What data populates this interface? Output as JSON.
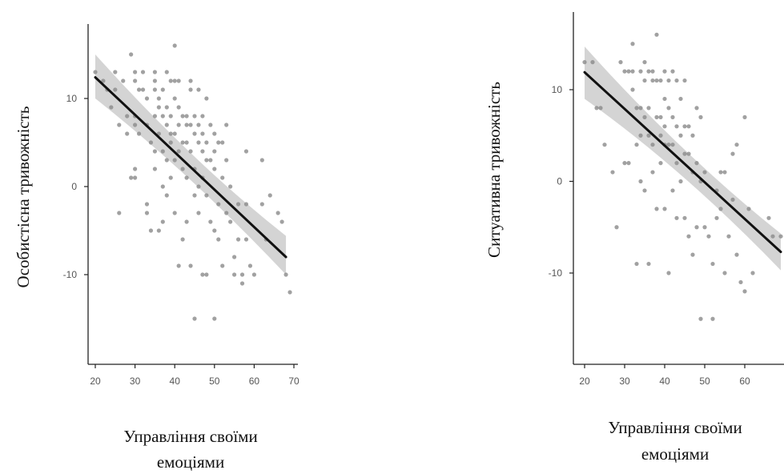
{
  "chart_data": [
    {
      "type": "scatter",
      "ylabel": "Особистісна тривожність",
      "xlabel_lines": [
        "Управління своїми",
        "емоціями"
      ],
      "x_ticks": [
        20,
        30,
        40,
        50,
        60,
        70
      ],
      "x_tick_labels": [
        "20",
        "30",
        "40",
        "50",
        "60",
        "70"
      ],
      "y_ticks": [
        -10,
        0,
        10
      ],
      "y_tick_labels": [
        "-10",
        "0",
        "10"
      ],
      "xlim": [
        20,
        70
      ],
      "ylim": [
        -17,
        18
      ],
      "regression": {
        "x": [
          20,
          68
        ],
        "y": [
          12.4,
          -8.0
        ],
        "ci_start": [
          10,
          15
        ],
        "ci_end": [
          -10.0,
          -5.6
        ]
      },
      "point_color": "#8a8a8a",
      "line_color": "#111111",
      "band_color": "#cccccc",
      "points": [
        [
          20,
          13
        ],
        [
          22,
          12
        ],
        [
          23,
          11
        ],
        [
          24,
          9
        ],
        [
          25,
          13
        ],
        [
          25,
          11
        ],
        [
          26,
          7
        ],
        [
          27,
          12
        ],
        [
          28,
          8
        ],
        [
          28,
          6
        ],
        [
          26,
          -3
        ],
        [
          29,
          15
        ],
        [
          30,
          13
        ],
        [
          30,
          12
        ],
        [
          30,
          8
        ],
        [
          30,
          7
        ],
        [
          31,
          11
        ],
        [
          31,
          6
        ],
        [
          30,
          1
        ],
        [
          29,
          1
        ],
        [
          30,
          2
        ],
        [
          32,
          13
        ],
        [
          32,
          11
        ],
        [
          33,
          10
        ],
        [
          33,
          7
        ],
        [
          33,
          -2
        ],
        [
          33,
          -3
        ],
        [
          34,
          5
        ],
        [
          34,
          -5
        ],
        [
          35,
          13
        ],
        [
          35,
          12
        ],
        [
          35,
          11
        ],
        [
          35,
          8
        ],
        [
          35,
          4
        ],
        [
          35,
          2
        ],
        [
          36,
          10
        ],
        [
          36,
          9
        ],
        [
          36,
          6
        ],
        [
          36,
          -5
        ],
        [
          37,
          11
        ],
        [
          37,
          8
        ],
        [
          37,
          4
        ],
        [
          37,
          0
        ],
        [
          37,
          -4
        ],
        [
          38,
          13
        ],
        [
          38,
          9
        ],
        [
          38,
          7
        ],
        [
          38,
          3
        ],
        [
          38,
          -1
        ],
        [
          39,
          12
        ],
        [
          39,
          8
        ],
        [
          39,
          6
        ],
        [
          39,
          5
        ],
        [
          39,
          1
        ],
        [
          40,
          16
        ],
        [
          40,
          12
        ],
        [
          40,
          10
        ],
        [
          40,
          6
        ],
        [
          40,
          3
        ],
        [
          40,
          -3
        ],
        [
          41,
          12
        ],
        [
          41,
          9
        ],
        [
          41,
          7
        ],
        [
          41,
          4
        ],
        [
          41,
          -9
        ],
        [
          42,
          8
        ],
        [
          42,
          5
        ],
        [
          42,
          2
        ],
        [
          42,
          -6
        ],
        [
          43,
          8
        ],
        [
          43,
          7
        ],
        [
          43,
          5
        ],
        [
          43,
          1
        ],
        [
          43,
          -4
        ],
        [
          44,
          12
        ],
        [
          44,
          11
        ],
        [
          44,
          7
        ],
        [
          44,
          4
        ],
        [
          44,
          -9
        ],
        [
          45,
          8
        ],
        [
          45,
          6
        ],
        [
          45,
          2
        ],
        [
          45,
          -1
        ],
        [
          45,
          -15
        ],
        [
          46,
          11
        ],
        [
          46,
          7
        ],
        [
          46,
          5
        ],
        [
          46,
          0
        ],
        [
          46,
          -3
        ],
        [
          47,
          8
        ],
        [
          47,
          6
        ],
        [
          47,
          4
        ],
        [
          47,
          1
        ],
        [
          47,
          -10
        ],
        [
          48,
          10
        ],
        [
          48,
          5
        ],
        [
          48,
          3
        ],
        [
          48,
          -1
        ],
        [
          48,
          -10
        ],
        [
          49,
          7
        ],
        [
          49,
          3
        ],
        [
          49,
          -4
        ],
        [
          50,
          6
        ],
        [
          50,
          4
        ],
        [
          50,
          2
        ],
        [
          50,
          -5
        ],
        [
          50,
          -15
        ],
        [
          51,
          5
        ],
        [
          51,
          -2
        ],
        [
          51,
          -6
        ],
        [
          52,
          5
        ],
        [
          52,
          1
        ],
        [
          52,
          -9
        ],
        [
          53,
          7
        ],
        [
          53,
          3
        ],
        [
          53,
          -3
        ],
        [
          54,
          0
        ],
        [
          54,
          -4
        ],
        [
          55,
          -8
        ],
        [
          55,
          -10
        ],
        [
          56,
          -2
        ],
        [
          56,
          -6
        ],
        [
          57,
          -10
        ],
        [
          57,
          -11
        ],
        [
          58,
          4
        ],
        [
          58,
          -2
        ],
        [
          58,
          -6
        ],
        [
          59,
          -9
        ],
        [
          60,
          -10
        ],
        [
          62,
          3
        ],
        [
          62,
          -2
        ],
        [
          63,
          -6
        ],
        [
          64,
          -1
        ],
        [
          66,
          -3
        ],
        [
          67,
          -4
        ],
        [
          68,
          -10
        ],
        [
          69,
          -12
        ]
      ]
    },
    {
      "type": "scatter",
      "ylabel": "Ситуативна тривожність",
      "xlabel_lines": [
        "Управління своїми",
        "емоціями"
      ],
      "x_ticks": [
        20,
        30,
        40,
        50,
        60
      ],
      "x_tick_labels": [
        "20",
        "30",
        "40",
        "50",
        "60"
      ],
      "y_ticks": [
        -10,
        0,
        10
      ],
      "y_tick_labels": [
        "-10",
        "0",
        "10"
      ],
      "xlim": [
        20,
        69
      ],
      "ylim": [
        -17,
        17
      ],
      "regression": {
        "x": [
          20,
          69
        ],
        "y": [
          11.9,
          -7.7
        ],
        "ci_start": [
          9,
          14.7
        ],
        "ci_end": [
          -9.7,
          -5.7
        ]
      },
      "point_color": "#8a8a8a",
      "line_color": "#111111",
      "band_color": "#cccccc",
      "points": [
        [
          20,
          13
        ],
        [
          22,
          13
        ],
        [
          23,
          8
        ],
        [
          24,
          8
        ],
        [
          25,
          4
        ],
        [
          27,
          1
        ],
        [
          28,
          -5
        ],
        [
          29,
          13
        ],
        [
          30,
          12
        ],
        [
          30,
          2
        ],
        [
          31,
          12
        ],
        [
          31,
          2
        ],
        [
          32,
          15
        ],
        [
          32,
          12
        ],
        [
          32,
          10
        ],
        [
          33,
          8
        ],
        [
          33,
          4
        ],
        [
          33,
          -9
        ],
        [
          34,
          12
        ],
        [
          34,
          8
        ],
        [
          34,
          5
        ],
        [
          34,
          0
        ],
        [
          35,
          13
        ],
        [
          35,
          11
        ],
        [
          35,
          7
        ],
        [
          35,
          -1
        ],
        [
          36,
          12
        ],
        [
          36,
          8
        ],
        [
          36,
          5
        ],
        [
          36,
          -9
        ],
        [
          37,
          12
        ],
        [
          37,
          11
        ],
        [
          37,
          4
        ],
        [
          37,
          1
        ],
        [
          38,
          16
        ],
        [
          38,
          11
        ],
        [
          38,
          7
        ],
        [
          38,
          -3
        ],
        [
          39,
          11
        ],
        [
          39,
          7
        ],
        [
          39,
          5
        ],
        [
          39,
          2
        ],
        [
          40,
          12
        ],
        [
          40,
          9
        ],
        [
          40,
          6
        ],
        [
          40,
          4
        ],
        [
          40,
          -3
        ],
        [
          41,
          11
        ],
        [
          41,
          8
        ],
        [
          41,
          4
        ],
        [
          41,
          -10
        ],
        [
          42,
          12
        ],
        [
          42,
          7
        ],
        [
          42,
          4
        ],
        [
          42,
          -1
        ],
        [
          43,
          11
        ],
        [
          43,
          6
        ],
        [
          43,
          2
        ],
        [
          43,
          -4
        ],
        [
          44,
          9
        ],
        [
          44,
          5
        ],
        [
          44,
          0
        ],
        [
          45,
          11
        ],
        [
          45,
          6
        ],
        [
          45,
          3
        ],
        [
          45,
          -4
        ],
        [
          46,
          6
        ],
        [
          46,
          3
        ],
        [
          46,
          -6
        ],
        [
          47,
          5
        ],
        [
          47,
          1
        ],
        [
          47,
          -8
        ],
        [
          48,
          8
        ],
        [
          48,
          2
        ],
        [
          48,
          -5
        ],
        [
          49,
          7
        ],
        [
          49,
          0
        ],
        [
          49,
          -15
        ],
        [
          50,
          1
        ],
        [
          50,
          -5
        ],
        [
          51,
          -6
        ],
        [
          52,
          -9
        ],
        [
          52,
          -15
        ],
        [
          53,
          -1
        ],
        [
          53,
          -4
        ],
        [
          54,
          1
        ],
        [
          54,
          -3
        ],
        [
          55,
          1
        ],
        [
          55,
          -10
        ],
        [
          56,
          -6
        ],
        [
          57,
          3
        ],
        [
          57,
          -2
        ],
        [
          58,
          4
        ],
        [
          58,
          -8
        ],
        [
          59,
          -11
        ],
        [
          60,
          7
        ],
        [
          60,
          -12
        ],
        [
          61,
          -3
        ],
        [
          62,
          -10
        ],
        [
          66,
          -4
        ],
        [
          67,
          -6
        ],
        [
          69,
          -6
        ]
      ]
    }
  ]
}
